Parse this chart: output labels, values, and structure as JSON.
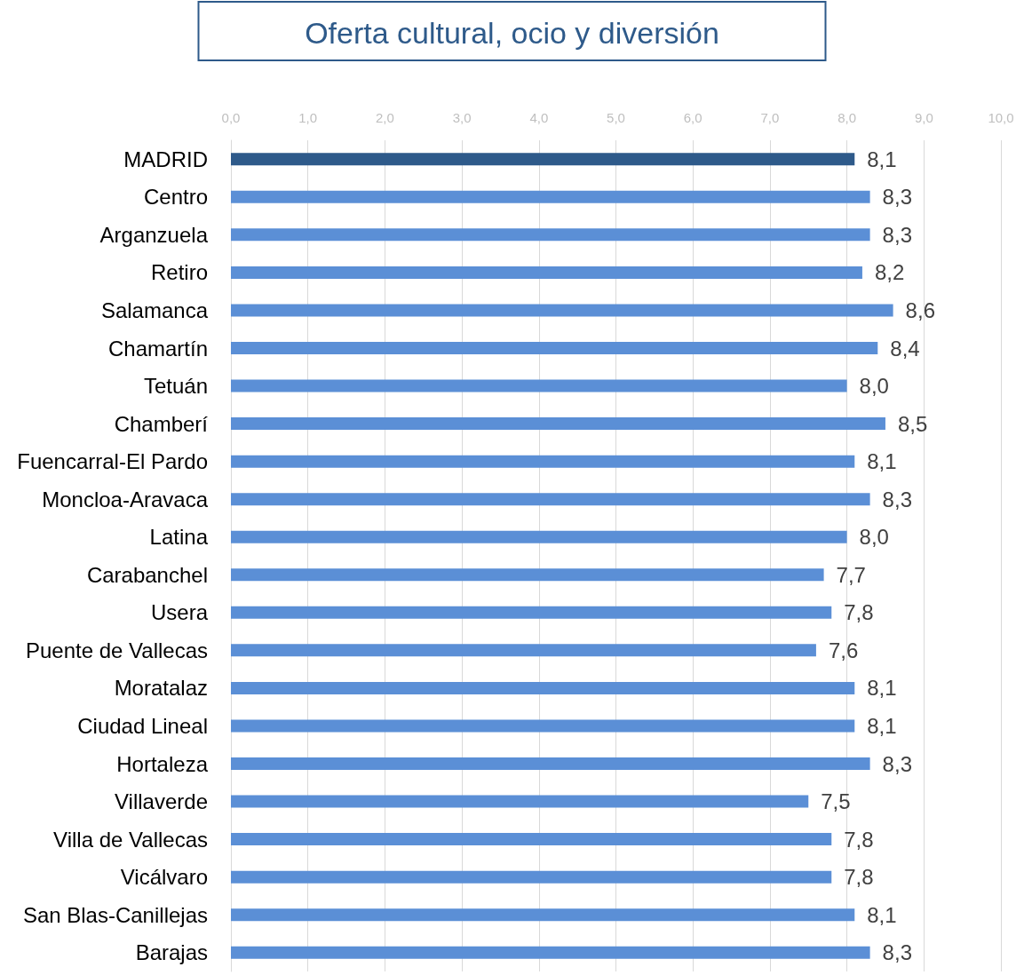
{
  "chart_data": {
    "type": "bar",
    "orientation": "horizontal",
    "title": "Oferta cultural, ocio y diversión",
    "categories": [
      "MADRID",
      "Centro",
      "Arganzuela",
      "Retiro",
      "Salamanca",
      "Chamartín",
      "Tetuán",
      "Chamberí",
      "Fuencarral-El Pardo",
      "Moncloa-Aravaca",
      "Latina",
      "Carabanchel",
      "Usera",
      "Puente de Vallecas",
      "Moratalaz",
      "Ciudad Lineal",
      "Hortaleza",
      "Villaverde",
      "Villa de Vallecas",
      "Vicálvaro",
      "San Blas-Canillejas",
      "Barajas"
    ],
    "values": [
      8.1,
      8.3,
      8.3,
      8.2,
      8.6,
      8.4,
      8.0,
      8.5,
      8.1,
      8.3,
      8.0,
      7.7,
      7.8,
      7.6,
      8.1,
      8.1,
      8.3,
      7.5,
      7.8,
      7.8,
      8.1,
      8.3
    ],
    "value_labels": [
      "8,1",
      "8,3",
      "8,3",
      "8,2",
      "8,6",
      "8,4",
      "8,0",
      "8,5",
      "8,1",
      "8,3",
      "8,0",
      "7,7",
      "7,8",
      "7,6",
      "8,1",
      "8,1",
      "8,3",
      "7,5",
      "7,8",
      "7,8",
      "8,1",
      "8,3"
    ],
    "colors": [
      "#2e5a8a",
      "#5b8fd6",
      "#5b8fd6",
      "#5b8fd6",
      "#5b8fd6",
      "#5b8fd6",
      "#5b8fd6",
      "#5b8fd6",
      "#5b8fd6",
      "#5b8fd6",
      "#5b8fd6",
      "#5b8fd6",
      "#5b8fd6",
      "#5b8fd6",
      "#5b8fd6",
      "#5b8fd6",
      "#5b8fd6",
      "#5b8fd6",
      "#5b8fd6",
      "#5b8fd6",
      "#5b8fd6",
      "#5b8fd6"
    ],
    "xlim": [
      0,
      10
    ],
    "xticks": [
      {
        "value": 0,
        "label": "0,0"
      },
      {
        "value": 1,
        "label": "1,0"
      },
      {
        "value": 2,
        "label": "2,0"
      },
      {
        "value": 3,
        "label": "3,0"
      },
      {
        "value": 4,
        "label": "4,0"
      },
      {
        "value": 5,
        "label": "5,0"
      },
      {
        "value": 6,
        "label": "6,0"
      },
      {
        "value": 7,
        "label": "7,0"
      },
      {
        "value": 8,
        "label": "8,0"
      },
      {
        "value": 9,
        "label": "9,0"
      },
      {
        "value": 10,
        "label": "10,0"
      }
    ],
    "grid": "x"
  }
}
